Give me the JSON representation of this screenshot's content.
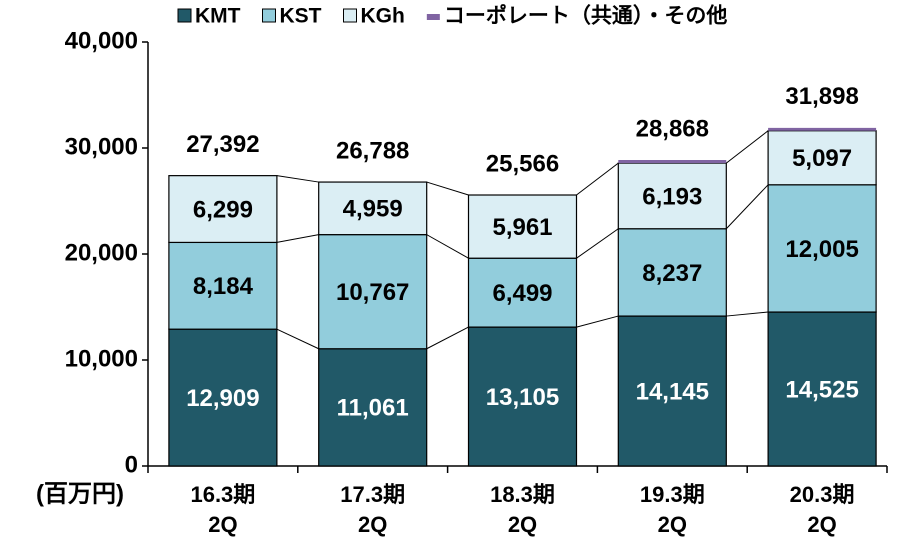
{
  "chart_data": {
    "type": "bar",
    "stacked": true,
    "y_unit_label": "(百万円)",
    "categories": [
      "16.3期\n2Q",
      "17.3期\n2Q",
      "18.3期\n2Q",
      "19.3期\n2Q",
      "20.3期\n2Q"
    ],
    "series": [
      {
        "name": "KMT",
        "color": "#215968",
        "values": [
          12909,
          11061,
          13105,
          14145,
          14525
        ],
        "value_labels": [
          "12,909",
          "11,061",
          "13,105",
          "14,145",
          "14,525"
        ],
        "label_color": "#ffffff"
      },
      {
        "name": "KST",
        "color": "#92cddc",
        "values": [
          8184,
          10767,
          6499,
          8237,
          12005
        ],
        "value_labels": [
          "8,184",
          "10,767",
          "6,499",
          "8,237",
          "12,005"
        ],
        "label_color": "#000000"
      },
      {
        "name": "KGh",
        "color": "#dbeef4",
        "values": [
          6299,
          4959,
          5961,
          6193,
          5097
        ],
        "value_labels": [
          "6,299",
          "4,959",
          "5,961",
          "6,193",
          "5,097"
        ],
        "label_color": "#000000"
      },
      {
        "name": "コーポレート（共通）・その他",
        "color": "#8064a2",
        "values": [
          0,
          1,
          1,
          293,
          271
        ]
      }
    ],
    "totals": [
      27392,
      26788,
      25566,
      28868,
      31898
    ],
    "total_labels": [
      "27,392",
      "26,788",
      "25,566",
      "28,868",
      "31,898"
    ],
    "ylim": [
      0,
      40000
    ],
    "yticks": [
      0,
      {
        "value": 10000,
        "label": "10,000"
      },
      {
        "value": 20000,
        "label": "20,000"
      },
      {
        "value": 30000,
        "label": "30,000"
      },
      {
        "value": 40000,
        "label": "40,000"
      }
    ],
    "grid": false,
    "legend": "top"
  }
}
